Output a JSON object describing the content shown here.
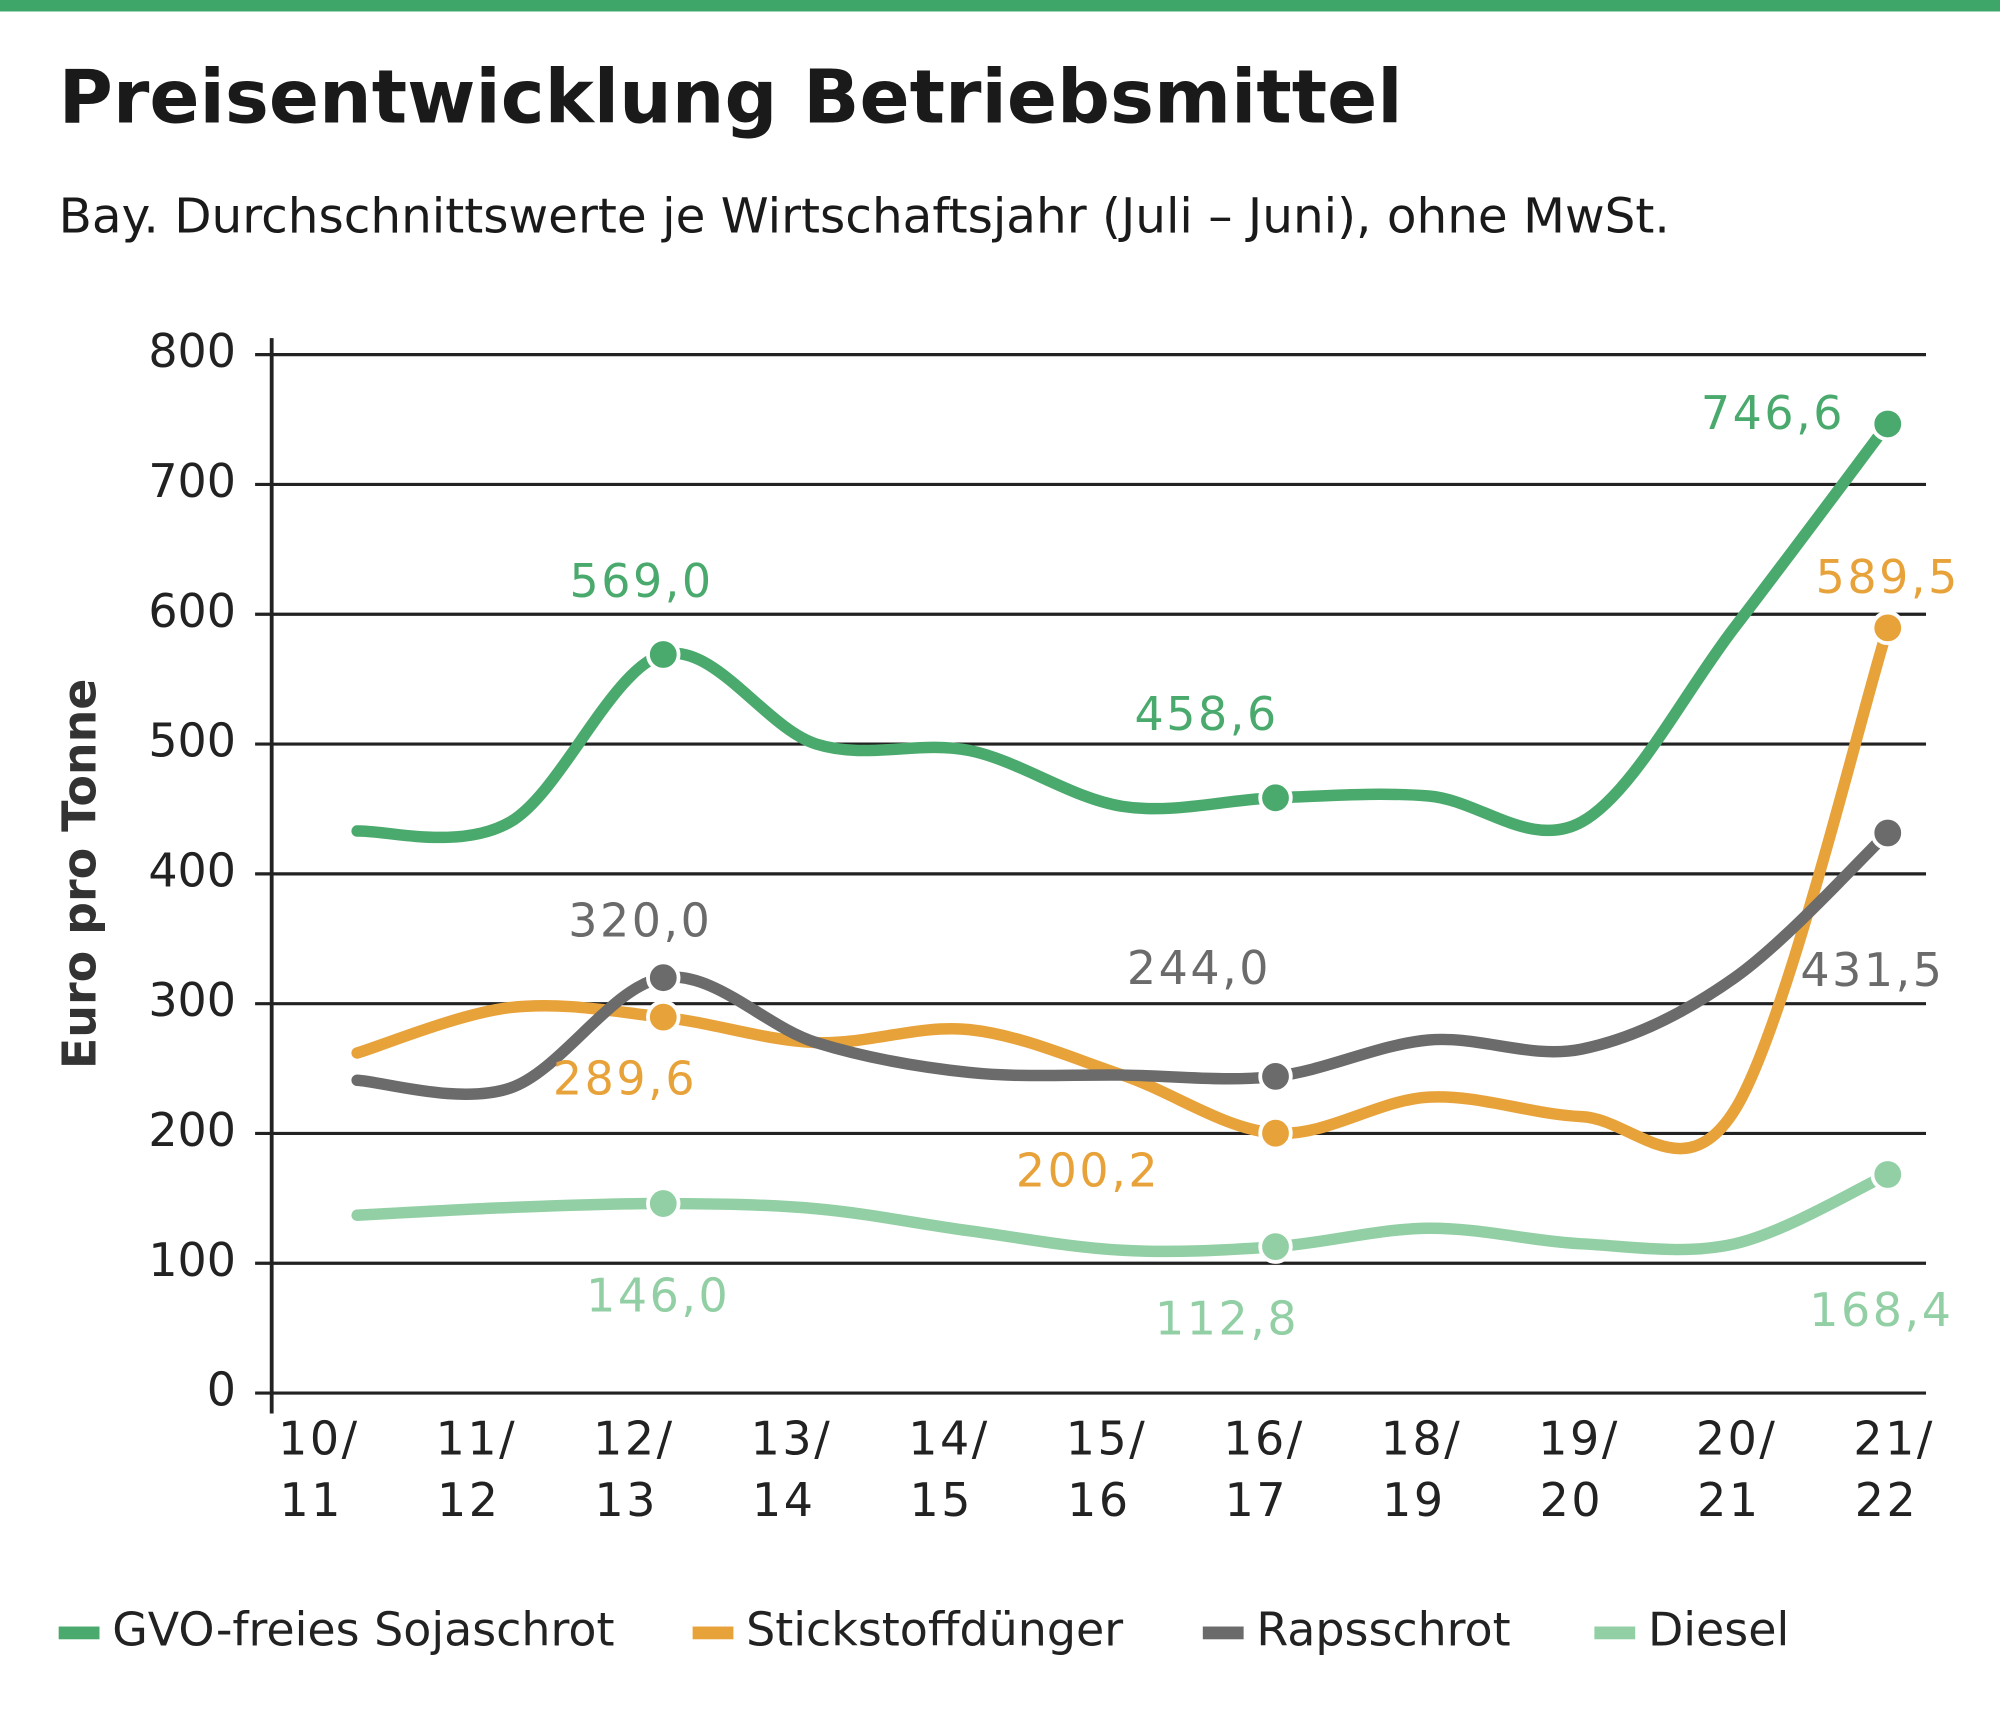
{
  "chart_data": {
    "type": "line",
    "title": "Preisentwicklung Betriebsmittel",
    "subtitle": "Bay. Durchschnittswerte je Wirtschaftsjahr (Juli – Juni), ohne MwSt.",
    "y_label": "Euro pro Tonne",
    "categories": [
      "10/11",
      "11/12",
      "12/13",
      "13/14",
      "14/15",
      "15/16",
      "16/17",
      "18/19",
      "19/20",
      "20/21",
      "21/22"
    ],
    "ylim": [
      0,
      800
    ],
    "yticks": [
      0,
      100,
      200,
      300,
      400,
      500,
      600,
      700,
      800
    ],
    "grid": true,
    "legend": "bottom",
    "series": [
      {
        "name": "GVO-freies Sojaschrot",
        "color": "#4aa96c",
        "values": [
          433,
          440,
          569.0,
          500,
          495,
          452,
          458.6,
          460,
          440,
          590,
          746.6
        ],
        "value_labels": [
          null,
          null,
          "569,0",
          null,
          null,
          null,
          "458,6",
          null,
          null,
          null,
          "746,6"
        ]
      },
      {
        "name": "Stickstoffdünger",
        "color": "#e8a23a",
        "values": [
          262,
          297,
          289.6,
          270,
          280,
          245,
          200.2,
          228,
          213,
          218,
          589.5
        ],
        "value_labels": [
          null,
          null,
          "289,6",
          null,
          null,
          null,
          "200,2",
          null,
          null,
          null,
          "589,5"
        ]
      },
      {
        "name": "Rapsschrot",
        "color": "#6b6b6b",
        "values": [
          241,
          235,
          320.0,
          270,
          247,
          245,
          244.0,
          272,
          265,
          320,
          431.5
        ],
        "value_labels": [
          null,
          null,
          "320,0",
          null,
          null,
          null,
          "244,0",
          null,
          null,
          null,
          "431,5"
        ]
      },
      {
        "name": "Diesel",
        "color": "#92cfa4",
        "values": [
          137,
          143,
          146.0,
          142,
          125,
          110,
          112.8,
          127,
          115,
          115,
          168.4
        ],
        "value_labels": [
          null,
          null,
          "146,0",
          null,
          null,
          null,
          "112,8",
          null,
          null,
          null,
          "168,4"
        ]
      }
    ]
  }
}
